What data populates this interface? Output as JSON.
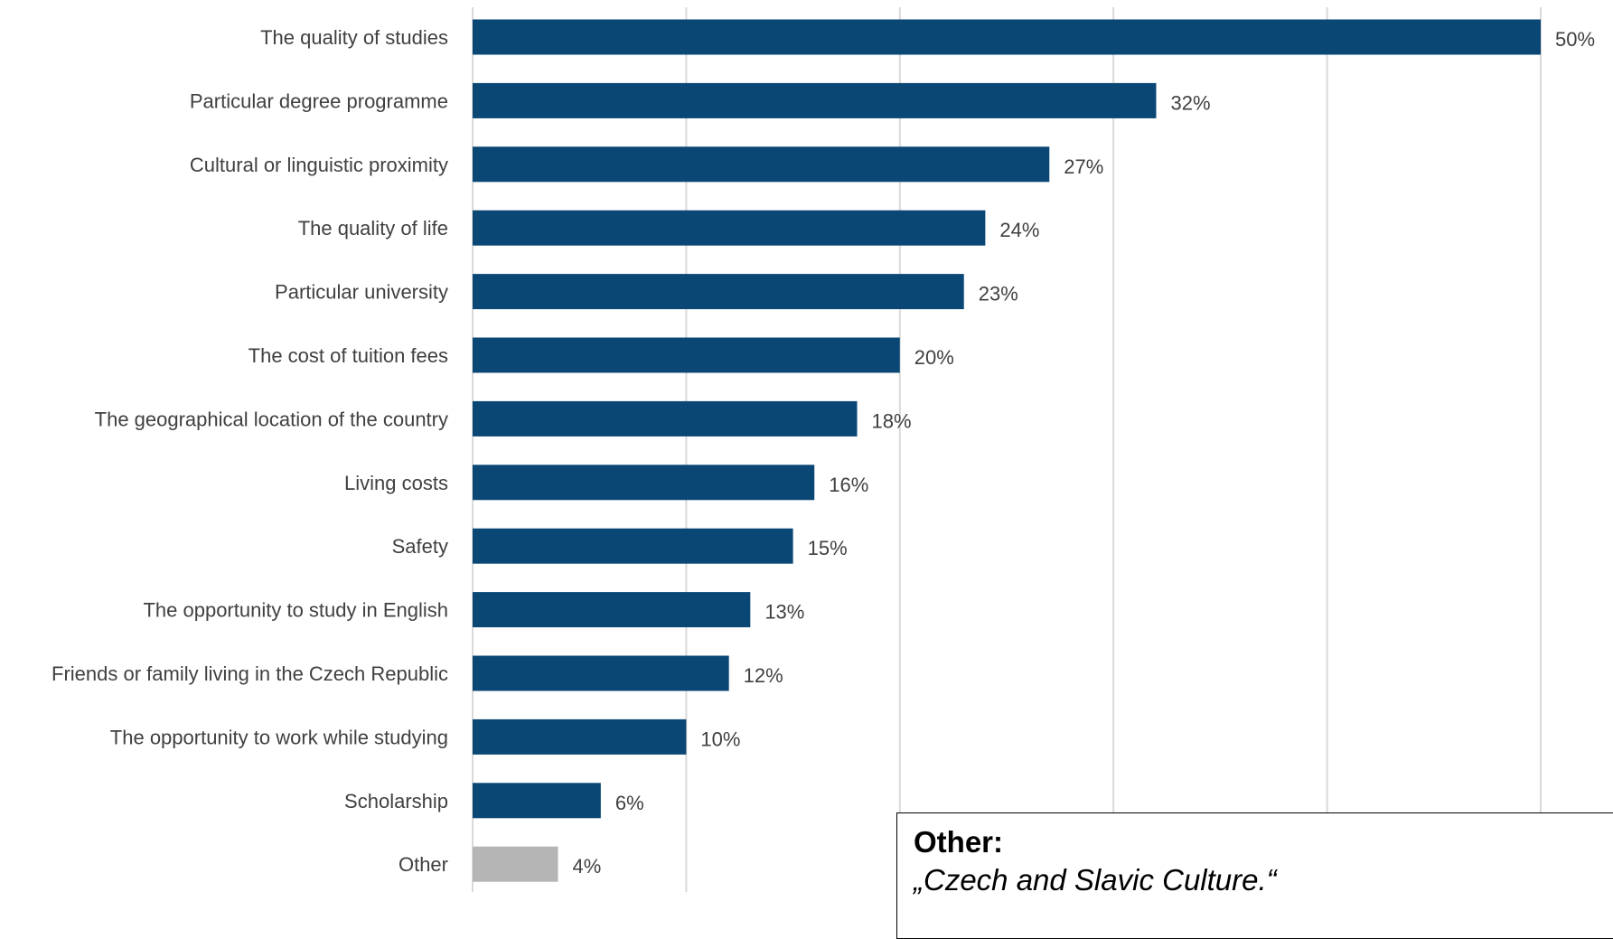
{
  "chart_data": {
    "type": "bar",
    "orientation": "horizontal",
    "categories": [
      "The quality of studies",
      "Particular degree programme",
      "Cultural or linguistic proximity",
      "The quality of life",
      "Particular university",
      "The cost of tuition fees",
      "The geographical location of the country",
      "Living costs",
      "Safety",
      "The opportunity to study in English",
      "Friends or family living in the Czech Republic",
      "The opportunity to work while studying",
      "Scholarship",
      "Other"
    ],
    "values": [
      50,
      32,
      27,
      24,
      23,
      20,
      18,
      16,
      15,
      13,
      12,
      10,
      6,
      4
    ],
    "value_labels": [
      "50%",
      "32%",
      "27%",
      "24%",
      "23%",
      "20%",
      "18%",
      "16%",
      "15%",
      "13%",
      "12%",
      "10%",
      "6%",
      "4%"
    ],
    "unit": "%",
    "xlim": [
      0,
      50
    ],
    "gridlines": [
      0,
      10,
      20,
      30,
      40,
      50
    ],
    "grid": true,
    "colors": {
      "bar": "#0a4775",
      "other_bar": "#b5b5b5",
      "grid": "#d9d9d9",
      "label": "#404040"
    }
  },
  "annotation": {
    "title": "Other:",
    "text": "„Czech and Slavic Culture.“"
  }
}
